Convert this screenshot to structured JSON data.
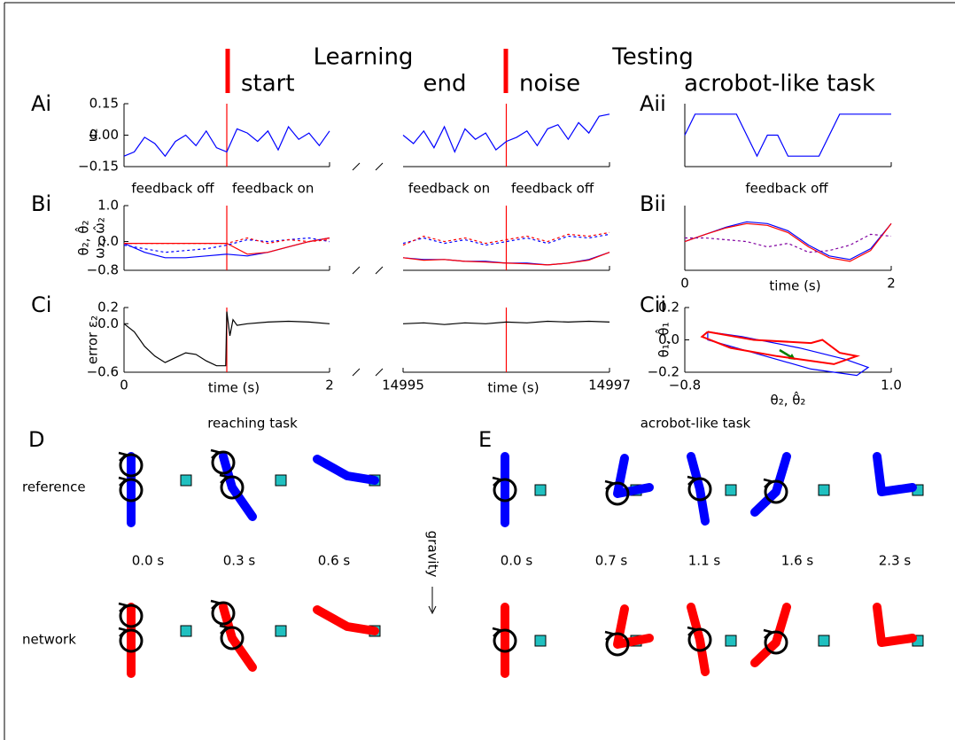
{
  "header": {
    "title_left": "Learning",
    "title_right": "Testing",
    "phases": [
      "start",
      "end",
      "noise",
      "acrobot-like task"
    ]
  },
  "chart_data": [
    {
      "type": "line",
      "panel": "Ai",
      "ylabel": "u₂",
      "ylim": [
        -0.15,
        0.15
      ],
      "yticks": [
        0.15,
        {
          "value": 0,
          "label": "0.00"
        },
        {
          "value": -0.15,
          "label": "−0.15"
        }
      ],
      "segments": [
        {
          "xlim": [
            0,
            2
          ],
          "markers": [
            1
          ],
          "x": [
            0,
            0.1,
            0.2,
            0.3,
            0.4,
            0.5,
            0.6,
            0.7,
            0.8,
            0.9,
            1.0,
            1.1,
            1.2,
            1.3,
            1.4,
            1.5,
            1.6,
            1.7,
            1.8,
            1.9,
            2.0
          ],
          "series": [
            {
              "color": "#0000ff",
              "values": [
                -0.1,
                -0.08,
                -0.01,
                -0.04,
                -0.1,
                -0.03,
                0.0,
                -0.05,
                0.02,
                -0.06,
                -0.08,
                0.03,
                0.01,
                -0.03,
                0.02,
                -0.07,
                0.04,
                -0.02,
                0.01,
                -0.05,
                0.02
              ]
            }
          ]
        },
        {
          "xlim": [
            14995,
            14997
          ],
          "markers": [
            14996
          ],
          "x": [
            14995,
            14995.1,
            14995.2,
            14995.3,
            14995.4,
            14995.5,
            14995.6,
            14995.7,
            14995.8,
            14995.9,
            14996,
            14996.1,
            14996.2,
            14996.3,
            14996.4,
            14996.5,
            14996.6,
            14996.7,
            14996.8,
            14996.9,
            14997
          ],
          "series": [
            {
              "color": "#0000ff",
              "values": [
                0.0,
                -0.04,
                0.02,
                -0.06,
                0.04,
                -0.08,
                0.03,
                -0.02,
                0.01,
                -0.07,
                -0.03,
                -0.01,
                0.02,
                -0.05,
                0.03,
                0.05,
                -0.02,
                0.06,
                0.01,
                0.09,
                0.1
              ]
            }
          ]
        }
      ]
    },
    {
      "type": "line",
      "panel": "Aii",
      "ylim": [
        -0.15,
        0.15
      ],
      "segments": [
        {
          "xlim": [
            0,
            2
          ],
          "x": [
            0,
            0.1,
            0.5,
            0.7,
            0.8,
            0.9,
            1.0,
            1.3,
            1.5,
            2.0
          ],
          "series": [
            {
              "color": "#0000ff",
              "values": [
                0,
                0.1,
                0.1,
                -0.1,
                0,
                0,
                -0.1,
                -0.1,
                0.1,
                0.1
              ]
            }
          ]
        }
      ]
    },
    {
      "type": "line",
      "panel": "Bi",
      "ylabel": [
        "θ₂, θ̂₂",
        "ω₂, ω̂₂"
      ],
      "ylim": [
        -0.8,
        1.0
      ],
      "yticks": [
        {
          "value": 1.0,
          "label": "1.0"
        },
        {
          "value": 0,
          "label": "0.0"
        },
        {
          "value": -0.8,
          "label": "−0.8"
        }
      ],
      "annotations": [
        "feedback off",
        "feedback on",
        "feedback on",
        "feedback off"
      ],
      "annotation_color": "#ff0000",
      "segments": [
        {
          "xlim": [
            0,
            2
          ],
          "markers": [
            1
          ],
          "x": [
            0,
            0.2,
            0.4,
            0.6,
            0.8,
            1.0,
            1.2,
            1.4,
            1.6,
            1.8,
            2.0
          ],
          "series": [
            {
              "color": "#0000ff",
              "values": [
                -0.05,
                -0.3,
                -0.45,
                -0.45,
                -0.4,
                -0.35,
                -0.4,
                -0.3,
                -0.15,
                0.0,
                0.1
              ]
            },
            {
              "color": "#ff0000",
              "values": [
                -0.05,
                -0.05,
                -0.05,
                -0.05,
                -0.05,
                -0.05,
                -0.35,
                -0.3,
                -0.15,
                0.0,
                0.1
              ]
            },
            {
              "color": "#0000ff",
              "dashed": true,
              "values": [
                -0.1,
                -0.2,
                -0.3,
                -0.25,
                -0.2,
                -0.1,
                0.05,
                0.0,
                0.05,
                0.1,
                0.0
              ]
            },
            {
              "color": "#ff0000",
              "dashed": true,
              "values": [
                -0.05,
                -0.05,
                -0.05,
                -0.05,
                -0.05,
                -0.05,
                0.1,
                -0.05,
                0.05,
                0.0,
                0.05
              ]
            }
          ]
        },
        {
          "xlim": [
            14995,
            14997
          ],
          "markers": [
            14996
          ],
          "x": [
            14995,
            14995.2,
            14995.4,
            14995.6,
            14995.8,
            14996,
            14996.2,
            14996.4,
            14996.6,
            14996.8,
            14997
          ],
          "series": [
            {
              "color": "#0000ff",
              "values": [
                -0.45,
                -0.5,
                -0.5,
                -0.55,
                -0.55,
                -0.6,
                -0.6,
                -0.65,
                -0.6,
                -0.5,
                -0.3
              ]
            },
            {
              "color": "#ff0000",
              "values": [
                -0.45,
                -0.52,
                -0.5,
                -0.55,
                -0.57,
                -0.6,
                -0.62,
                -0.65,
                -0.6,
                -0.52,
                -0.3
              ]
            },
            {
              "color": "#0000ff",
              "dashed": true,
              "values": [
                -0.05,
                0.1,
                -0.05,
                0.05,
                -0.1,
                0.0,
                0.1,
                -0.05,
                0.15,
                0.1,
                0.2
              ]
            },
            {
              "color": "#ff0000",
              "dashed": true,
              "values": [
                -0.1,
                0.15,
                0.0,
                0.1,
                -0.05,
                0.05,
                0.15,
                0.0,
                0.2,
                0.15,
                0.25
              ]
            }
          ]
        }
      ]
    },
    {
      "type": "line",
      "panel": "Bii",
      "ylim": [
        -0.8,
        1.0
      ],
      "annotations": [
        "feedback off"
      ],
      "annotation_color": "#ff0000",
      "segments": [
        {
          "xlim": [
            0,
            2
          ],
          "xticks": [
            0,
            2
          ],
          "xlabel": "time (s)",
          "x": [
            0,
            0.2,
            0.4,
            0.6,
            0.8,
            1.0,
            1.2,
            1.4,
            1.6,
            1.8,
            2.0
          ],
          "series": [
            {
              "color": "#0000ff",
              "values": [
                0,
                0.2,
                0.4,
                0.55,
                0.5,
                0.3,
                -0.1,
                -0.4,
                -0.5,
                -0.2,
                0.5
              ]
            },
            {
              "color": "#ff0000",
              "values": [
                0,
                0.2,
                0.38,
                0.5,
                0.45,
                0.25,
                -0.15,
                -0.45,
                -0.55,
                -0.25,
                0.5
              ]
            },
            {
              "color": "#8000a0",
              "dashed": true,
              "values": [
                0.1,
                0.1,
                0.05,
                0.0,
                -0.15,
                -0.05,
                -0.3,
                -0.25,
                -0.1,
                0.2,
                0.15
              ]
            }
          ]
        }
      ]
    },
    {
      "type": "line",
      "panel": "Ci",
      "ylabel": "error ε₂",
      "ylim": [
        -0.6,
        0.2
      ],
      "yticks": [
        {
          "value": 0.2,
          "label": "0.2"
        },
        {
          "value": 0,
          "label": "0.0"
        },
        {
          "value": -0.6,
          "label": "−0.6"
        }
      ],
      "segments": [
        {
          "xlim": [
            0,
            2
          ],
          "xticks": [
            0,
            2
          ],
          "xlabel": "time (s)",
          "markers": [
            1
          ],
          "x": [
            0,
            0.1,
            0.2,
            0.3,
            0.4,
            0.5,
            0.6,
            0.7,
            0.8,
            0.9,
            0.99,
            1.0,
            1.03,
            1.06,
            1.1,
            1.2,
            1.4,
            1.6,
            1.8,
            2.0
          ],
          "series": [
            {
              "color": "#000000",
              "values": [
                0,
                -0.1,
                -0.28,
                -0.4,
                -0.48,
                -0.42,
                -0.36,
                -0.38,
                -0.46,
                -0.52,
                -0.52,
                0.15,
                -0.15,
                0.05,
                -0.02,
                0.0,
                0.02,
                0.03,
                0.02,
                0.0
              ]
            }
          ]
        },
        {
          "xlim": [
            14995,
            14997
          ],
          "xticks": [
            14995,
            14997
          ],
          "xlabel": "time (s)",
          "markers": [
            14996
          ],
          "x": [
            14995,
            14995.2,
            14995.4,
            14995.6,
            14995.8,
            14996,
            14996.2,
            14996.4,
            14996.6,
            14996.8,
            14997
          ],
          "series": [
            {
              "color": "#000000",
              "values": [
                0,
                0.01,
                -0.01,
                0.01,
                0,
                0.02,
                0.01,
                0.03,
                0.02,
                0.03,
                0.02
              ]
            }
          ]
        }
      ]
    },
    {
      "type": "line",
      "panel": "Cii",
      "ylabel": "θ₁, θ̂₁",
      "ylim": [
        -0.2,
        0.2
      ],
      "yticks": [
        {
          "value": 0.2,
          "label": "0.2"
        },
        {
          "value": 0,
          "label": "0.0"
        },
        {
          "value": -0.2,
          "label": "−0.2"
        }
      ],
      "segments": [
        {
          "xlim": [
            -0.8,
            1.0
          ],
          "xticks": [
            {
              "value": -0.8,
              "label": "−0.8"
            },
            {
              "value": 1.0,
              "label": "1.0"
            }
          ],
          "xlabel": "θ₂, θ̂₂",
          "series": [
            {
              "color": "#0000ff",
              "x": [
                -0.6,
                -0.3,
                0.2,
                0.6,
                0.8,
                0.7,
                0.3,
                -0.2,
                -0.6,
                -0.6
              ],
              "values": [
                0.05,
                0.02,
                -0.05,
                -0.12,
                -0.17,
                -0.22,
                -0.18,
                -0.08,
                0.0,
                0.05
              ]
            },
            {
              "color": "#ff0000",
              "x": [
                -0.6,
                -0.2,
                0.3,
                0.4,
                0.55,
                0.7,
                0.5,
                0.2,
                0.0,
                -0.4,
                -0.65,
                -0.6
              ],
              "values": [
                0.05,
                0.0,
                -0.02,
                0.0,
                -0.08,
                -0.1,
                -0.15,
                -0.12,
                -0.1,
                -0.05,
                0.02,
                0.05
              ]
            }
          ]
        }
      ]
    }
  ],
  "diagrams": {
    "D": {
      "label": "D",
      "title": "reaching task",
      "rows": [
        "reference",
        "network"
      ],
      "times": [
        "0.0 s",
        "0.3 s",
        "0.6 s"
      ]
    },
    "E": {
      "label": "E",
      "title": "acrobot-like task",
      "times": [
        "0.0 s",
        "0.7 s",
        "1.1 s",
        "1.6 s",
        "2.3 s"
      ]
    },
    "gravity": "gravity"
  }
}
